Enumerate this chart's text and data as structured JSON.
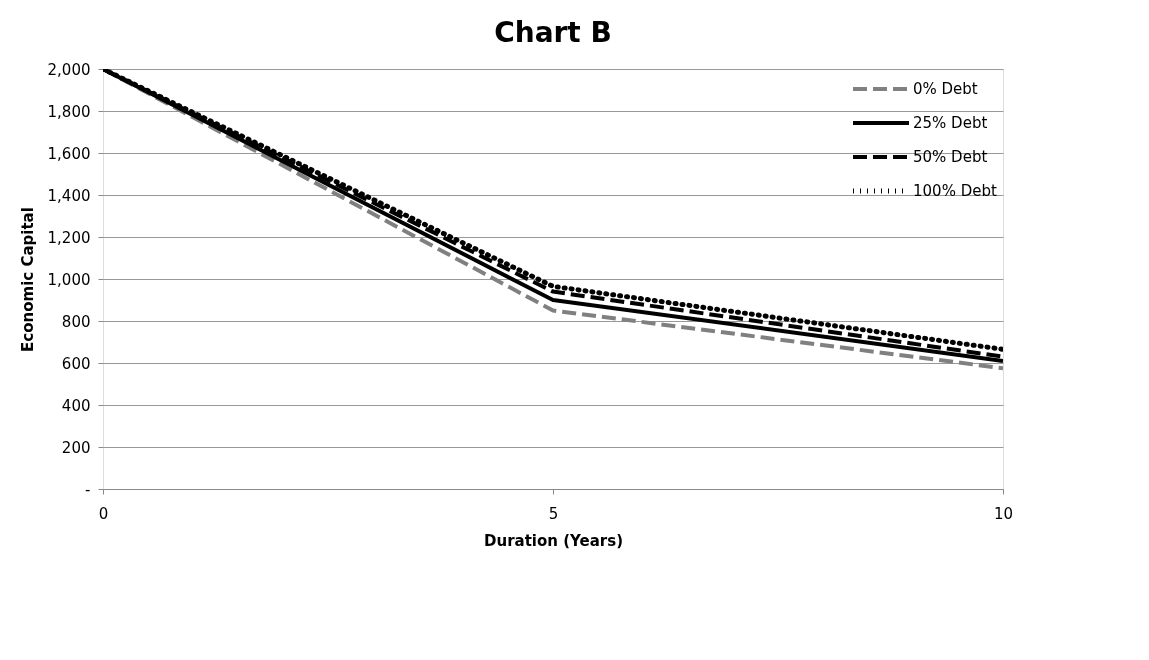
{
  "chart_data": {
    "type": "line",
    "title": "Chart B",
    "xlabel": "Duration (Years)",
    "ylabel": "Economic Capital",
    "x": [
      0,
      5,
      10
    ],
    "series": [
      {
        "name": "0% Debt",
        "color": "#808080",
        "values": [
          2000,
          850,
          575
        ],
        "line_style": "dashed"
      },
      {
        "name": "25% Debt",
        "color": "#000000",
        "values": [
          2000,
          900,
          610
        ],
        "line_style": "solid"
      },
      {
        "name": "50% Debt",
        "color": "#000000",
        "values": [
          2000,
          940,
          630
        ],
        "line_style": "dashed"
      },
      {
        "name": "100% Debt",
        "color": "#000000",
        "values": [
          2000,
          965,
          665
        ],
        "line_style": "dotted"
      }
    ],
    "xlim": [
      0,
      10
    ],
    "xticks": [
      0,
      5,
      10
    ],
    "ylim": [
      0,
      2000
    ],
    "yticks": [
      {
        "value": 0,
        "label": "-"
      },
      {
        "value": 200,
        "label": "200"
      },
      {
        "value": 400,
        "label": "400"
      },
      {
        "value": 600,
        "label": "600"
      },
      {
        "value": 800,
        "label": "800"
      },
      {
        "value": 1000,
        "label": "1,000"
      },
      {
        "value": 1200,
        "label": "1,200"
      },
      {
        "value": 1400,
        "label": "1,400"
      },
      {
        "value": 1600,
        "label": "1,600"
      },
      {
        "value": 1800,
        "label": "1,800"
      },
      {
        "value": 2000,
        "label": "2,000"
      }
    ],
    "grid": "y",
    "legend": "top right",
    "marker": "none"
  }
}
